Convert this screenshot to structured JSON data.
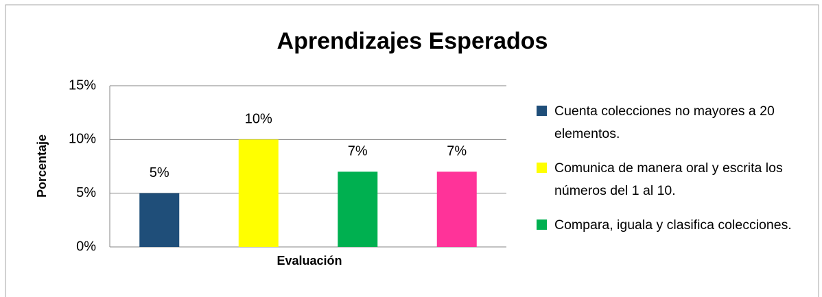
{
  "chart_data": {
    "type": "bar",
    "title": "Aprendizajes Esperados",
    "x_label": "Evaluación",
    "y_label": "Porcentaje",
    "series": [
      {
        "name": "Cuenta colecciones no mayores a 20 elementos.",
        "color": "#1f4e79",
        "values": [
          5
        ],
        "value_labels": [
          "5%"
        ]
      },
      {
        "name": "Comunica de manera oral y escrita los números del 1 al 10.",
        "color": "#ffff00",
        "values": [
          10
        ],
        "value_labels": [
          "10%"
        ]
      },
      {
        "name": "Compara, iguala y clasifica colecciones.",
        "color": "#00b050",
        "values": [
          7
        ],
        "value_labels": [
          "7%"
        ]
      },
      {
        "color": "#ff3399",
        "values": [
          7
        ],
        "value_labels": [
          "7%"
        ]
      }
    ],
    "ylim": [
      0,
      15
    ],
    "yticks": [
      {
        "value": 0,
        "label": "0%"
      },
      {
        "value": 5,
        "label": "5%"
      },
      {
        "value": 10,
        "label": "10%"
      },
      {
        "value": 15,
        "label": "15%"
      }
    ],
    "grid": true,
    "legend": "right"
  }
}
